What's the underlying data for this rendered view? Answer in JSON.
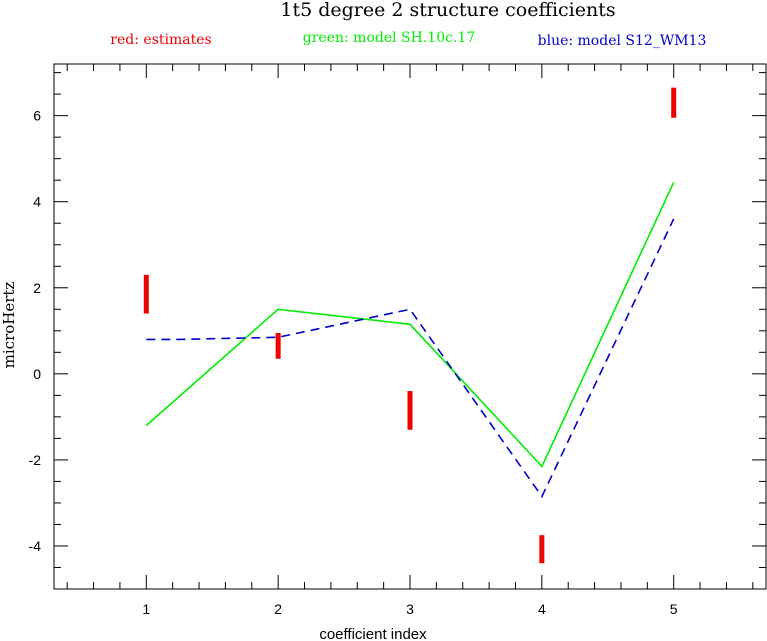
{
  "chart_data": {
    "type": "line",
    "title": "1t5 degree 2 structure coefficients",
    "legend": [
      {
        "text": "red: estimates",
        "color": "#ee0000"
      },
      {
        "text": "green: model SH.10c.17",
        "color": "#00ee00"
      },
      {
        "text": "blue: model S12_WM13",
        "color": "#0000cc"
      }
    ],
    "xlabel": "coefficient index",
    "ylabel": "microHertz",
    "xlim": [
      0.3,
      5.7
    ],
    "ylim": [
      -5,
      7.2
    ],
    "x_ticks": [
      1,
      2,
      3,
      4,
      5
    ],
    "y_ticks": [
      -4,
      -2,
      0,
      2,
      4,
      6
    ],
    "estimates": {
      "name": "red: estimates",
      "color": "#ee0000",
      "x": [
        1,
        2,
        3,
        4,
        5
      ],
      "low": [
        1.4,
        0.35,
        -1.3,
        -4.4,
        5.95
      ],
      "high": [
        2.3,
        0.95,
        -0.4,
        -3.75,
        6.65
      ]
    },
    "series": [
      {
        "name": "green: model SH.10c.17",
        "color": "#00ee00",
        "dashed": false,
        "x": [
          1,
          2,
          3,
          4,
          5
        ],
        "values": [
          -1.2,
          1.5,
          1.15,
          -2.15,
          4.45
        ]
      },
      {
        "name": "blue: model S12_WM13",
        "color": "#0000cc",
        "dashed": true,
        "x": [
          1,
          1.25,
          2,
          3,
          4,
          5
        ],
        "values": [
          0.8,
          0.8,
          0.85,
          1.5,
          -2.85,
          3.6
        ]
      }
    ]
  }
}
